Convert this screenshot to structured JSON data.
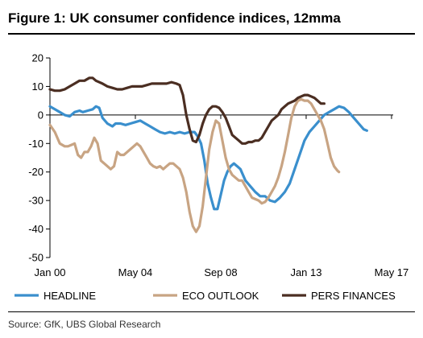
{
  "title": "Figure 1: UK consumer confidence indices, 12mma",
  "source": "Source: GfK, UBS Global Research",
  "chart_data": {
    "type": "line",
    "ylim": [
      -50,
      20
    ],
    "yticks": [
      20,
      10,
      0,
      -10,
      -20,
      -30,
      -40,
      -50
    ],
    "xlim": [
      0,
      209
    ],
    "xticks": [
      {
        "label": "Jan 00",
        "pos": 0
      },
      {
        "label": "May 04",
        "pos": 52
      },
      {
        "label": "Sep 08",
        "pos": 104
      },
      {
        "label": "Jan 13",
        "pos": 156
      },
      {
        "label": "May 17",
        "pos": 208
      }
    ],
    "grid": false,
    "legend_position": "bottom",
    "series": [
      {
        "name": "HEADLINE",
        "color": "#3a8fcd",
        "points": [
          [
            0,
            3
          ],
          [
            3,
            2
          ],
          [
            6,
            1
          ],
          [
            9,
            0
          ],
          [
            12,
            -0.5
          ],
          [
            15,
            1
          ],
          [
            18,
            1.5
          ],
          [
            20,
            1
          ],
          [
            23,
            1.5
          ],
          [
            26,
            2
          ],
          [
            28,
            3
          ],
          [
            30,
            2.5
          ],
          [
            32,
            -1
          ],
          [
            35,
            -3
          ],
          [
            38,
            -4
          ],
          [
            40,
            -3
          ],
          [
            43,
            -3
          ],
          [
            46,
            -3.5
          ],
          [
            49,
            -3
          ],
          [
            52,
            -2.5
          ],
          [
            55,
            -2
          ],
          [
            58,
            -3
          ],
          [
            61,
            -4
          ],
          [
            64,
            -5
          ],
          [
            67,
            -6
          ],
          [
            70,
            -6.5
          ],
          [
            73,
            -6
          ],
          [
            76,
            -6.5
          ],
          [
            79,
            -6
          ],
          [
            82,
            -6.5
          ],
          [
            85,
            -6
          ],
          [
            88,
            -6
          ],
          [
            90,
            -7.5
          ],
          [
            92,
            -10
          ],
          [
            94,
            -16
          ],
          [
            96,
            -24
          ],
          [
            98,
            -29
          ],
          [
            100,
            -33
          ],
          [
            102,
            -33
          ],
          [
            104,
            -28
          ],
          [
            106,
            -23
          ],
          [
            108,
            -20
          ],
          [
            110,
            -18
          ],
          [
            112,
            -17
          ],
          [
            114,
            -18
          ],
          [
            116,
            -19
          ],
          [
            119,
            -23
          ],
          [
            122,
            -25
          ],
          [
            125,
            -27
          ],
          [
            128,
            -28.5
          ],
          [
            131,
            -28.5
          ],
          [
            134,
            -30
          ],
          [
            137,
            -30.5
          ],
          [
            140,
            -29
          ],
          [
            143,
            -27
          ],
          [
            146,
            -24
          ],
          [
            149,
            -19
          ],
          [
            152,
            -14
          ],
          [
            155,
            -9
          ],
          [
            158,
            -6
          ],
          [
            161,
            -4
          ],
          [
            164,
            -2
          ],
          [
            167,
            0
          ],
          [
            170,
            1
          ],
          [
            173,
            2
          ],
          [
            176,
            3
          ],
          [
            179,
            2.5
          ],
          [
            182,
            1
          ],
          [
            185,
            -1
          ],
          [
            188,
            -3
          ],
          [
            191,
            -5
          ],
          [
            193,
            -5.5
          ]
        ]
      },
      {
        "name": "ECO OUTLOOK",
        "color": "#c8a483",
        "points": [
          [
            0,
            -3.5
          ],
          [
            3,
            -6
          ],
          [
            6,
            -10
          ],
          [
            9,
            -11
          ],
          [
            11,
            -11
          ],
          [
            13,
            -10.5
          ],
          [
            15,
            -10
          ],
          [
            17,
            -14
          ],
          [
            19,
            -15
          ],
          [
            21,
            -13
          ],
          [
            23,
            -13
          ],
          [
            25,
            -11
          ],
          [
            27,
            -8
          ],
          [
            29,
            -10
          ],
          [
            31,
            -16
          ],
          [
            33,
            -17
          ],
          [
            35,
            -18
          ],
          [
            37,
            -19
          ],
          [
            39,
            -18
          ],
          [
            41,
            -13
          ],
          [
            43,
            -14
          ],
          [
            45,
            -14
          ],
          [
            47,
            -13
          ],
          [
            49,
            -12
          ],
          [
            51,
            -11
          ],
          [
            53,
            -10
          ],
          [
            55,
            -11
          ],
          [
            57,
            -13
          ],
          [
            59,
            -15
          ],
          [
            61,
            -17
          ],
          [
            63,
            -18
          ],
          [
            65,
            -18.5
          ],
          [
            67,
            -18
          ],
          [
            69,
            -19
          ],
          [
            71,
            -18
          ],
          [
            73,
            -17
          ],
          [
            75,
            -17
          ],
          [
            77,
            -18
          ],
          [
            79,
            -19
          ],
          [
            81,
            -22
          ],
          [
            83,
            -27
          ],
          [
            85,
            -34
          ],
          [
            87,
            -39
          ],
          [
            89,
            -41
          ],
          [
            91,
            -39
          ],
          [
            93,
            -32
          ],
          [
            95,
            -22
          ],
          [
            97,
            -12
          ],
          [
            99,
            -6
          ],
          [
            101,
            -2
          ],
          [
            103,
            -3
          ],
          [
            105,
            -9
          ],
          [
            107,
            -15
          ],
          [
            109,
            -19
          ],
          [
            111,
            -21
          ],
          [
            113,
            -22
          ],
          [
            115,
            -23
          ],
          [
            117,
            -23
          ],
          [
            119,
            -25
          ],
          [
            121,
            -27
          ],
          [
            123,
            -29
          ],
          [
            125,
            -29.5
          ],
          [
            127,
            -30
          ],
          [
            129,
            -31
          ],
          [
            131,
            -30.5
          ],
          [
            133,
            -29
          ],
          [
            135,
            -27
          ],
          [
            137,
            -25
          ],
          [
            139,
            -22
          ],
          [
            141,
            -18
          ],
          [
            143,
            -13
          ],
          [
            145,
            -7
          ],
          [
            147,
            -1
          ],
          [
            149,
            3
          ],
          [
            151,
            5
          ],
          [
            153,
            5.5
          ],
          [
            155,
            5
          ],
          [
            157,
            5
          ],
          [
            159,
            4
          ],
          [
            161,
            2
          ],
          [
            163,
            0
          ],
          [
            165,
            -2
          ],
          [
            167,
            -5
          ],
          [
            169,
            -10
          ],
          [
            171,
            -15
          ],
          [
            173,
            -18
          ],
          [
            175,
            -19.5
          ],
          [
            176,
            -20
          ]
        ]
      },
      {
        "name": "PERS FINANCES",
        "color": "#4b2e22",
        "points": [
          [
            0,
            9
          ],
          [
            3,
            8.5
          ],
          [
            6,
            8.5
          ],
          [
            9,
            9
          ],
          [
            12,
            10
          ],
          [
            15,
            11
          ],
          [
            18,
            12
          ],
          [
            21,
            12
          ],
          [
            24,
            13
          ],
          [
            26,
            13
          ],
          [
            28,
            12
          ],
          [
            30,
            11.5
          ],
          [
            32,
            11
          ],
          [
            35,
            10
          ],
          [
            38,
            9.5
          ],
          [
            41,
            9
          ],
          [
            44,
            9
          ],
          [
            47,
            9.5
          ],
          [
            50,
            10
          ],
          [
            53,
            10
          ],
          [
            56,
            10
          ],
          [
            59,
            10.5
          ],
          [
            62,
            11
          ],
          [
            65,
            11
          ],
          [
            68,
            11
          ],
          [
            71,
            11
          ],
          [
            74,
            11.5
          ],
          [
            77,
            11
          ],
          [
            79,
            10.5
          ],
          [
            81,
            7
          ],
          [
            83,
            0
          ],
          [
            85,
            -5
          ],
          [
            87,
            -9
          ],
          [
            89,
            -9.5
          ],
          [
            91,
            -7
          ],
          [
            93,
            -3
          ],
          [
            95,
            0
          ],
          [
            97,
            2
          ],
          [
            99,
            3
          ],
          [
            101,
            3
          ],
          [
            103,
            2.5
          ],
          [
            105,
            1
          ],
          [
            107,
            -1
          ],
          [
            109,
            -4
          ],
          [
            111,
            -7
          ],
          [
            113,
            -8
          ],
          [
            115,
            -9
          ],
          [
            117,
            -10
          ],
          [
            119,
            -10
          ],
          [
            121,
            -9.5
          ],
          [
            123,
            -9.5
          ],
          [
            125,
            -9
          ],
          [
            127,
            -9
          ],
          [
            129,
            -8
          ],
          [
            131,
            -6
          ],
          [
            133,
            -4
          ],
          [
            135,
            -2
          ],
          [
            137,
            -1
          ],
          [
            139,
            0
          ],
          [
            141,
            2
          ],
          [
            143,
            3
          ],
          [
            145,
            4
          ],
          [
            147,
            4.5
          ],
          [
            149,
            5
          ],
          [
            151,
            6
          ],
          [
            153,
            6.5
          ],
          [
            155,
            7
          ],
          [
            157,
            7
          ],
          [
            159,
            6.5
          ],
          [
            161,
            6
          ],
          [
            163,
            5
          ],
          [
            165,
            4
          ],
          [
            167,
            4
          ]
        ]
      }
    ]
  }
}
